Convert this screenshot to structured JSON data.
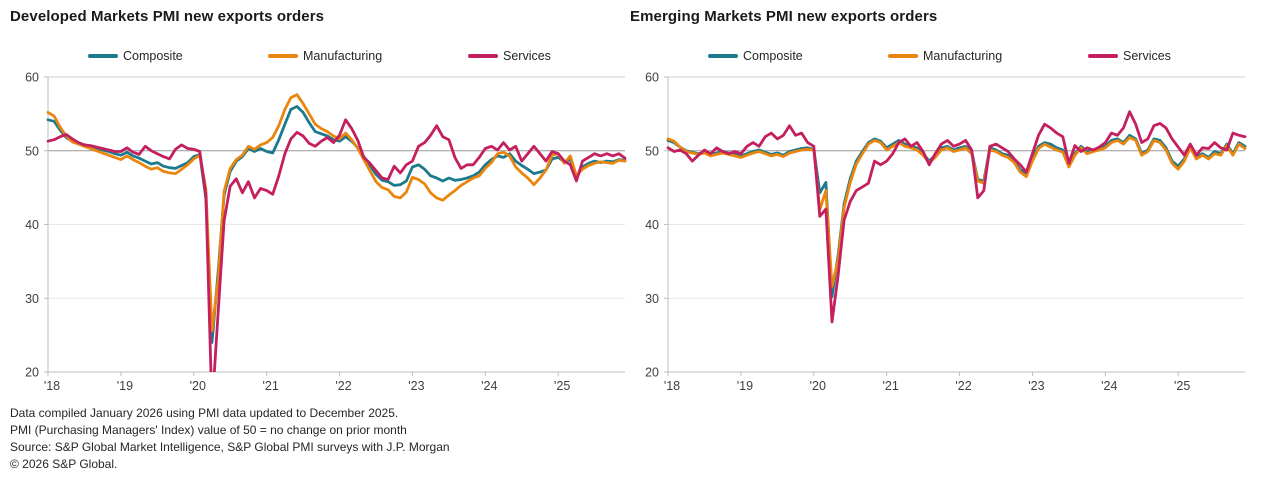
{
  "footnotes": [
    "Data compiled January 2026 using PMI data updated to December 2025.",
    "PMI (Purchasing Managers' Index) value of 50 = no change on prior month",
    "Source: S&P Global Market Intelligence, S&P Global PMI surveys with J.P. Morgan",
    "© 2026 S&P Global."
  ],
  "axis": {
    "y_min": 20,
    "y_max": 60,
    "reference_value": 50
  },
  "chart_data": [
    {
      "type": "line",
      "title": "Developed Markets PMI new exports orders",
      "x_start": "2018-01",
      "x_end": "2025-12",
      "x_frequency": "monthly",
      "x_tick_labels": [
        "'18",
        "'19",
        "'20",
        "'21",
        "'22",
        "'23",
        "'24",
        "'25"
      ],
      "ylim": [
        20,
        60
      ],
      "yticks": [
        20,
        30,
        40,
        50,
        60
      ],
      "reference_line": 50,
      "legend_position": "top",
      "series": [
        {
          "name": "Composite",
          "color": "#1b7a8d",
          "values": [
            54.2,
            54.0,
            52.8,
            51.8,
            51.3,
            51.0,
            50.8,
            50.6,
            50.3,
            50.1,
            49.9,
            49.6,
            49.4,
            49.8,
            49.3,
            49.0,
            48.6,
            48.2,
            48.4,
            47.9,
            47.7,
            47.6,
            48.0,
            48.4,
            49.2,
            49.5,
            43.5,
            24.0,
            33.5,
            44.0,
            47.2,
            48.6,
            49.2,
            50.3,
            49.9,
            50.3,
            49.9,
            49.7,
            51.5,
            53.6,
            55.6,
            56.0,
            55.2,
            53.8,
            52.6,
            52.3,
            52.0,
            51.5,
            51.3,
            51.9,
            51.3,
            50.4,
            49.2,
            48.0,
            46.8,
            46.0,
            45.8,
            45.3,
            45.4,
            45.9,
            47.8,
            48.1,
            47.5,
            46.6,
            46.3,
            45.9,
            46.3,
            46.0,
            46.1,
            46.3,
            46.6,
            47.1,
            48.1,
            48.8,
            49.3,
            49.1,
            49.6,
            48.6,
            48.0,
            47.5,
            46.9,
            47.1,
            47.4,
            48.9,
            49.1,
            48.5,
            48.8,
            46.4,
            47.8,
            48.3,
            48.6,
            48.4,
            48.6,
            48.5,
            48.8,
            48.7
          ]
        },
        {
          "name": "Manufacturing",
          "color": "#ea850d",
          "values": [
            55.2,
            54.7,
            53.2,
            52.0,
            51.2,
            50.9,
            50.6,
            50.3,
            50.0,
            49.7,
            49.4,
            49.1,
            48.8,
            49.3,
            48.8,
            48.4,
            47.9,
            47.5,
            47.7,
            47.2,
            47.0,
            46.9,
            47.5,
            48.1,
            48.9,
            49.4,
            44.8,
            25.6,
            32.5,
            44.5,
            47.6,
            48.8,
            49.4,
            50.6,
            50.2,
            50.8,
            51.1,
            51.8,
            53.4,
            55.6,
            57.2,
            57.6,
            56.4,
            55.0,
            53.6,
            53.0,
            52.6,
            52.0,
            51.6,
            52.4,
            51.5,
            50.3,
            48.8,
            47.3,
            45.8,
            45.0,
            44.7,
            43.8,
            43.6,
            44.4,
            46.4,
            46.1,
            45.5,
            44.3,
            43.6,
            43.3,
            44.0,
            44.6,
            45.3,
            45.8,
            46.3,
            46.6,
            47.6,
            48.4,
            49.6,
            49.8,
            49.3,
            47.8,
            47.0,
            46.3,
            45.4,
            46.3,
            47.4,
            49.4,
            49.6,
            48.3,
            49.3,
            46.6,
            47.5,
            48.0,
            48.3,
            48.5,
            48.4,
            48.3,
            48.7,
            48.6
          ]
        },
        {
          "name": "Services",
          "color": "#c41f5e",
          "values": [
            51.3,
            51.5,
            51.9,
            52.2,
            51.6,
            51.1,
            50.8,
            50.7,
            50.5,
            50.3,
            50.1,
            49.9,
            49.9,
            50.4,
            49.8,
            49.5,
            50.6,
            50.0,
            49.6,
            49.2,
            48.9,
            50.2,
            50.8,
            50.3,
            50.2,
            49.9,
            44.0,
            15.0,
            28.0,
            40.5,
            45.2,
            46.2,
            44.3,
            45.8,
            43.6,
            44.9,
            44.6,
            44.1,
            46.6,
            49.6,
            51.6,
            52.5,
            52.0,
            51.0,
            50.6,
            51.3,
            51.8,
            51.1,
            52.1,
            54.2,
            53.0,
            51.4,
            49.1,
            48.3,
            47.3,
            46.3,
            46.1,
            47.9,
            47.0,
            48.1,
            48.6,
            50.6,
            51.1,
            52.1,
            53.4,
            51.9,
            51.5,
            49.1,
            47.6,
            48.1,
            48.1,
            49.1,
            50.3,
            50.6,
            50.1,
            51.1,
            50.1,
            50.6,
            48.6,
            49.6,
            50.6,
            49.6,
            48.6,
            49.9,
            49.6,
            48.6,
            48.1,
            45.9,
            48.6,
            49.1,
            49.6,
            49.3,
            49.6,
            49.3,
            49.6,
            49.0
          ]
        }
      ]
    },
    {
      "type": "line",
      "title": "Emerging Markets PMI new exports orders",
      "x_start": "2018-01",
      "x_end": "2025-12",
      "x_frequency": "monthly",
      "x_tick_labels": [
        "'18",
        "'19",
        "'20",
        "'21",
        "'22",
        "'23",
        "'24",
        "'25"
      ],
      "ylim": [
        20,
        60
      ],
      "yticks": [
        20,
        30,
        40,
        50,
        60
      ],
      "reference_line": 50,
      "legend_position": "top",
      "series": [
        {
          "name": "Composite",
          "color": "#1b7a8d",
          "values": [
            51.4,
            51.1,
            50.5,
            50.0,
            49.8,
            49.6,
            49.8,
            49.5,
            49.7,
            49.9,
            49.7,
            49.5,
            49.3,
            49.6,
            49.9,
            50.1,
            49.8,
            49.5,
            49.7,
            49.4,
            49.9,
            50.1,
            50.3,
            50.4,
            50.2,
            44.3,
            45.7,
            30.2,
            35.8,
            42.8,
            46.2,
            48.6,
            49.9,
            51.1,
            51.6,
            51.3,
            50.4,
            50.9,
            51.4,
            50.9,
            50.6,
            50.4,
            49.6,
            48.6,
            49.4,
            50.4,
            50.6,
            50.1,
            50.4,
            50.6,
            49.9,
            46.1,
            45.9,
            50.4,
            50.1,
            49.6,
            49.4,
            48.6,
            47.4,
            46.9,
            48.9,
            50.6,
            51.1,
            50.9,
            50.4,
            50.1,
            48.1,
            49.6,
            50.6,
            49.9,
            50.1,
            50.4,
            50.6,
            51.4,
            51.6,
            51.1,
            52.1,
            51.6,
            49.6,
            50.1,
            51.6,
            51.4,
            50.4,
            48.6,
            47.9,
            48.9,
            50.6,
            49.1,
            49.6,
            49.1,
            49.9,
            49.6,
            50.9,
            49.6,
            51.1,
            50.6
          ]
        },
        {
          "name": "Manufacturing",
          "color": "#ea850d",
          "values": [
            51.6,
            51.3,
            50.5,
            49.9,
            49.7,
            49.5,
            49.7,
            49.3,
            49.5,
            49.7,
            49.5,
            49.3,
            49.1,
            49.4,
            49.7,
            49.9,
            49.6,
            49.3,
            49.5,
            49.2,
            49.7,
            49.9,
            50.1,
            50.2,
            50.1,
            42.0,
            44.6,
            31.6,
            35.2,
            42.3,
            45.7,
            48.2,
            49.6,
            50.9,
            51.4,
            51.1,
            50.1,
            50.6,
            51.1,
            50.6,
            50.4,
            50.1,
            49.4,
            48.4,
            49.1,
            50.1,
            50.4,
            49.9,
            50.1,
            50.4,
            49.6,
            45.9,
            45.6,
            50.1,
            49.9,
            49.4,
            49.1,
            48.4,
            47.1,
            46.5,
            48.6,
            50.3,
            50.9,
            50.5,
            50.1,
            49.8,
            47.8,
            49.4,
            50.4,
            49.6,
            49.9,
            50.1,
            50.4,
            51.1,
            51.4,
            50.9,
            51.8,
            51.4,
            49.4,
            49.9,
            51.4,
            51.1,
            50.1,
            48.3,
            47.5,
            48.6,
            50.4,
            48.9,
            49.4,
            48.9,
            49.6,
            49.4,
            50.7,
            49.4,
            50.9,
            50.3
          ]
        },
        {
          "name": "Services",
          "color": "#c41f5e",
          "values": [
            50.4,
            49.9,
            50.1,
            49.6,
            48.6,
            49.4,
            50.1,
            49.6,
            50.4,
            49.9,
            49.6,
            49.9,
            49.6,
            50.6,
            51.1,
            50.6,
            51.9,
            52.4,
            51.6,
            52.1,
            53.4,
            52.1,
            52.4,
            51.1,
            50.6,
            41.1,
            42.1,
            26.8,
            33.1,
            40.6,
            43.1,
            44.6,
            45.1,
            45.6,
            48.6,
            48.1,
            48.6,
            49.6,
            51.1,
            51.6,
            50.6,
            51.1,
            49.9,
            48.1,
            49.6,
            50.9,
            51.4,
            50.6,
            50.9,
            51.4,
            50.1,
            43.6,
            44.6,
            50.6,
            50.9,
            50.4,
            49.9,
            48.9,
            48.1,
            47.1,
            49.6,
            52.1,
            53.6,
            53.1,
            52.4,
            51.9,
            48.3,
            50.7,
            49.9,
            50.4,
            50.1,
            50.5,
            51.1,
            52.4,
            52.1,
            53.1,
            55.3,
            53.6,
            51.1,
            51.6,
            53.4,
            53.7,
            53.1,
            51.6,
            50.5,
            49.4,
            50.9,
            49.4,
            50.4,
            50.3,
            51.1,
            50.4,
            50.1,
            52.4,
            52.1,
            51.9
          ]
        }
      ]
    }
  ]
}
